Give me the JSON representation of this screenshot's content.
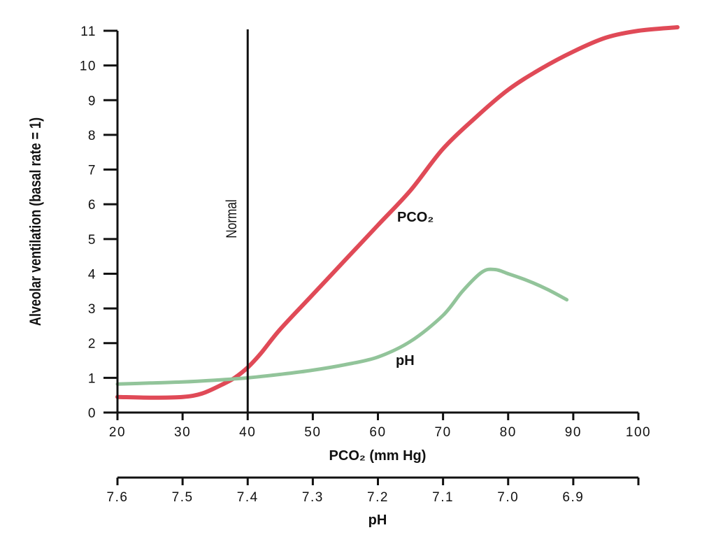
{
  "chart_data": {
    "type": "line",
    "title": "",
    "xlabel": "PCO₂ (mm Hg)",
    "ylabel": "Alveolar ventilation (basal rate = 1)",
    "x2label": "pH",
    "xlim": [
      20,
      100
    ],
    "ylim": [
      0,
      11
    ],
    "x_ticks": [
      20,
      30,
      40,
      50,
      60,
      70,
      80,
      90,
      100
    ],
    "y_ticks": [
      0,
      1,
      2,
      3,
      4,
      5,
      6,
      7,
      8,
      9,
      10,
      11
    ],
    "ph_axis_ticks": [
      {
        "ph": "7.6",
        "pco2": 20
      },
      {
        "ph": "7.5",
        "pco2": 30
      },
      {
        "ph": "7.4",
        "pco2": 40
      },
      {
        "ph": "7.3",
        "pco2": 50
      },
      {
        "ph": "7.2",
        "pco2": 60
      },
      {
        "ph": "7.1",
        "pco2": 70
      },
      {
        "ph": "7.0",
        "pco2": 80
      },
      {
        "ph": "6.9",
        "pco2": 90
      }
    ],
    "reference_line": {
      "x": 40,
      "label": "Normal"
    },
    "grid": false,
    "series": [
      {
        "name": "PCO₂",
        "color": "#e04a57",
        "x": [
          20,
          25,
          30,
          33,
          36,
          38,
          40,
          42,
          45,
          50,
          55,
          60,
          65,
          70,
          75,
          80,
          85,
          90,
          95,
          100,
          106
        ],
        "y": [
          0.45,
          0.43,
          0.45,
          0.55,
          0.8,
          1.0,
          1.3,
          1.7,
          2.4,
          3.4,
          4.4,
          5.4,
          6.4,
          7.6,
          8.5,
          9.3,
          9.9,
          10.4,
          10.8,
          11.0,
          11.1
        ]
      },
      {
        "name": "pH",
        "color": "#92c49a",
        "x": [
          20,
          25,
          30,
          35,
          40,
          45,
          50,
          55,
          60,
          65,
          70,
          73,
          76,
          78,
          80,
          83,
          86,
          89
        ],
        "y": [
          0.82,
          0.85,
          0.88,
          0.93,
          1.0,
          1.1,
          1.22,
          1.38,
          1.6,
          2.05,
          2.8,
          3.5,
          4.05,
          4.12,
          4.0,
          3.8,
          3.55,
          3.25
        ]
      }
    ]
  }
}
